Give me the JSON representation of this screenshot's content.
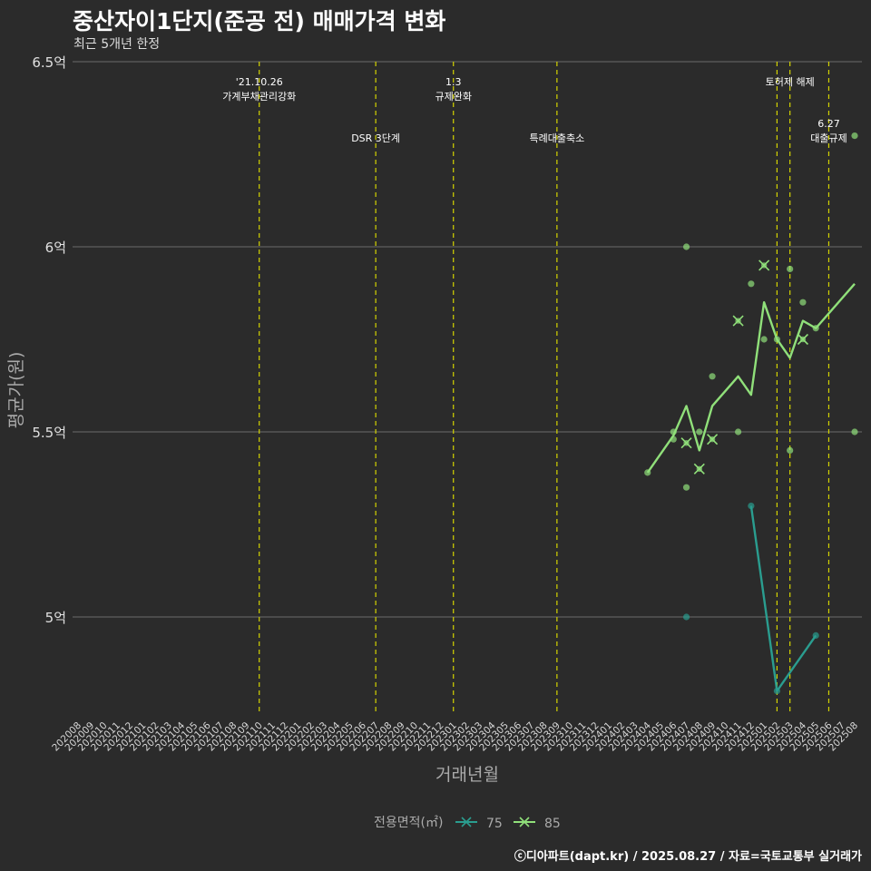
{
  "title": "중산자이1단지(준공 전) 매매가격 변화",
  "subtitle": "최근 5개년 한정",
  "caption": "ⓒ디아파트(dapt.kr) / 2025.08.27 / 자료=국토교통부 실거래가",
  "colors": {
    "background": "#2b2b2b",
    "grid": "#6b6b6b",
    "event_line": "#d4d400",
    "series_75": "#2a9d8f",
    "series_85": "#90e07a"
  },
  "chart_data": {
    "type": "line",
    "title": "중산자이1단지(준공 전) 매매가격 변화",
    "subtitle": "최근 5개년 한정",
    "xlabel": "거래년월",
    "ylabel": "평균가(원)",
    "ylim": [
      4.73,
      6.5
    ],
    "yticks": [
      {
        "value": 5.0,
        "label": "5억"
      },
      {
        "value": 5.5,
        "label": "5.5억"
      },
      {
        "value": 6.0,
        "label": "6억"
      },
      {
        "value": 6.5,
        "label": "6.5억"
      }
    ],
    "categories": [
      "202008",
      "202009",
      "202010",
      "202011",
      "202012",
      "202101",
      "202102",
      "202103",
      "202104",
      "202105",
      "202106",
      "202107",
      "202108",
      "202109",
      "202110",
      "202111",
      "202112",
      "202201",
      "202202",
      "202203",
      "202204",
      "202205",
      "202206",
      "202207",
      "202208",
      "202209",
      "202210",
      "202211",
      "202212",
      "202301",
      "202302",
      "202303",
      "202304",
      "202305",
      "202306",
      "202307",
      "202308",
      "202309",
      "202310",
      "202311",
      "202312",
      "202401",
      "202402",
      "202403",
      "202404",
      "202405",
      "202406",
      "202407",
      "202408",
      "202409",
      "202410",
      "202411",
      "202412",
      "202501",
      "202502",
      "202503",
      "202504",
      "202505",
      "202506",
      "202507",
      "202508"
    ],
    "legend": {
      "title": "전용면적(㎡)",
      "position": "bottom",
      "entries": [
        "75",
        "85"
      ]
    },
    "events": [
      {
        "month": "202110",
        "lines": [
          "'21.10.26",
          "가계부채관리강화"
        ],
        "level": 1
      },
      {
        "month": "202207",
        "lines": [
          "DSR 3단계"
        ],
        "level": 2
      },
      {
        "month": "202301",
        "lines": [
          "1.3",
          "규제완화"
        ],
        "level": 1
      },
      {
        "month": "202309",
        "lines": [
          "특례대출축소"
        ],
        "level": 2
      },
      {
        "month": "202502",
        "lines": [],
        "level": 0
      },
      {
        "month": "202503",
        "lines": [
          "토허제 해제"
        ],
        "level": 1
      },
      {
        "month": "202506",
        "lines": [
          "6.27",
          "대출규제"
        ],
        "level": 2
      }
    ],
    "series": [
      {
        "name": "75",
        "line": [
          {
            "x": "202412",
            "y": 5.3
          },
          {
            "x": "202502",
            "y": 4.8
          },
          {
            "x": "202505",
            "y": 4.95
          }
        ],
        "points": [
          {
            "x": "202407",
            "y": 5.0
          },
          {
            "x": "202412",
            "y": 5.3
          },
          {
            "x": "202502",
            "y": 4.8
          },
          {
            "x": "202505",
            "y": 4.95
          }
        ]
      },
      {
        "name": "85",
        "line": [
          {
            "x": "202404",
            "y": 5.39
          },
          {
            "x": "202406",
            "y": 5.49
          },
          {
            "x": "202407",
            "y": 5.57
          },
          {
            "x": "202408",
            "y": 5.45
          },
          {
            "x": "202409",
            "y": 5.57
          },
          {
            "x": "202411",
            "y": 5.65
          },
          {
            "x": "202412",
            "y": 5.6
          },
          {
            "x": "202501",
            "y": 5.85
          },
          {
            "x": "202502",
            "y": 5.75
          },
          {
            "x": "202503",
            "y": 5.7
          },
          {
            "x": "202504",
            "y": 5.8
          },
          {
            "x": "202505",
            "y": 5.78
          },
          {
            "x": "202508",
            "y": 5.9
          }
        ],
        "points": [
          {
            "x": "202404",
            "y": 5.39
          },
          {
            "x": "202406",
            "y": 5.48
          },
          {
            "x": "202406",
            "y": 5.5
          },
          {
            "x": "202407",
            "y": 6.0
          },
          {
            "x": "202407",
            "y": 5.35
          },
          {
            "x": "202408",
            "y": 5.5
          },
          {
            "x": "202409",
            "y": 5.65
          },
          {
            "x": "202411",
            "y": 5.5
          },
          {
            "x": "202412",
            "y": 5.9
          },
          {
            "x": "202501",
            "y": 5.75
          },
          {
            "x": "202502",
            "y": 5.75
          },
          {
            "x": "202503",
            "y": 5.94
          },
          {
            "x": "202503",
            "y": 5.45
          },
          {
            "x": "202504",
            "y": 5.85
          },
          {
            "x": "202505",
            "y": 5.78
          },
          {
            "x": "202508",
            "y": 6.3
          },
          {
            "x": "202508",
            "y": 5.5
          }
        ],
        "crosses": [
          {
            "x": "202407",
            "y": 5.47
          },
          {
            "x": "202408",
            "y": 5.4
          },
          {
            "x": "202409",
            "y": 5.48
          },
          {
            "x": "202411",
            "y": 5.8
          },
          {
            "x": "202501",
            "y": 5.95
          },
          {
            "x": "202504",
            "y": 5.75
          }
        ]
      }
    ]
  }
}
